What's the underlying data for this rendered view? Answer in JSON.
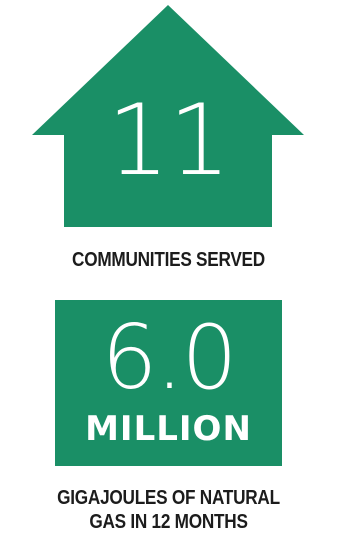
{
  "colors": {
    "brand_green": "#1a8f66",
    "caption_text": "#1c1c1c"
  },
  "stat_communities": {
    "value": "11",
    "label": "COMMUNITIES SERVED",
    "icon": "house-icon"
  },
  "stat_gas": {
    "value": "6.0",
    "unit": "MILLION",
    "label_line1": "GIGAJOULES OF NATURAL",
    "label_line2": "GAS IN 12 MONTHS"
  }
}
